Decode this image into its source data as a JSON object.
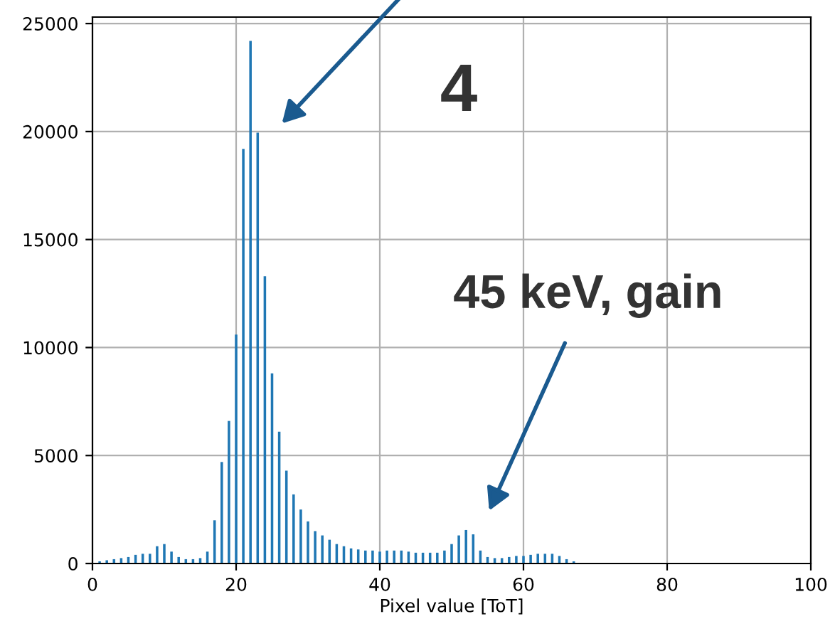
{
  "chart_data": {
    "type": "bar",
    "xlabel": "Pixel value [ToT]",
    "x": [
      1,
      2,
      3,
      4,
      5,
      6,
      7,
      8,
      9,
      10,
      11,
      12,
      13,
      14,
      15,
      16,
      17,
      18,
      19,
      20,
      21,
      22,
      23,
      24,
      25,
      26,
      27,
      28,
      29,
      30,
      31,
      32,
      33,
      34,
      35,
      36,
      37,
      38,
      39,
      40,
      41,
      42,
      43,
      44,
      45,
      46,
      47,
      48,
      49,
      50,
      51,
      52,
      53,
      54,
      55,
      56,
      57,
      58,
      59,
      60,
      61,
      62,
      63,
      64,
      65,
      66,
      67
    ],
    "values": [
      100,
      150,
      200,
      250,
      300,
      400,
      450,
      450,
      800,
      900,
      550,
      300,
      200,
      200,
      250,
      550,
      2000,
      4700,
      6600,
      10600,
      19200,
      24200,
      19950,
      13300,
      8800,
      6100,
      4300,
      3200,
      2500,
      1950,
      1500,
      1300,
      1100,
      900,
      800,
      700,
      650,
      600,
      600,
      550,
      600,
      600,
      600,
      550,
      500,
      500,
      500,
      500,
      600,
      900,
      1300,
      1550,
      1350,
      600,
      300,
      250,
      250,
      300,
      350,
      350,
      400,
      450,
      450,
      450,
      350,
      200,
      100
    ],
    "color": "#1f77b4",
    "xlim": [
      0,
      100
    ],
    "xticks": [
      0,
      20,
      40,
      60,
      80,
      100
    ],
    "ylim": [
      0,
      25300
    ],
    "yticks": [
      0,
      5000,
      10000,
      15000,
      20000,
      25000
    ],
    "grid": true,
    "annotations": [
      "4",
      "45 keV, gain"
    ]
  }
}
